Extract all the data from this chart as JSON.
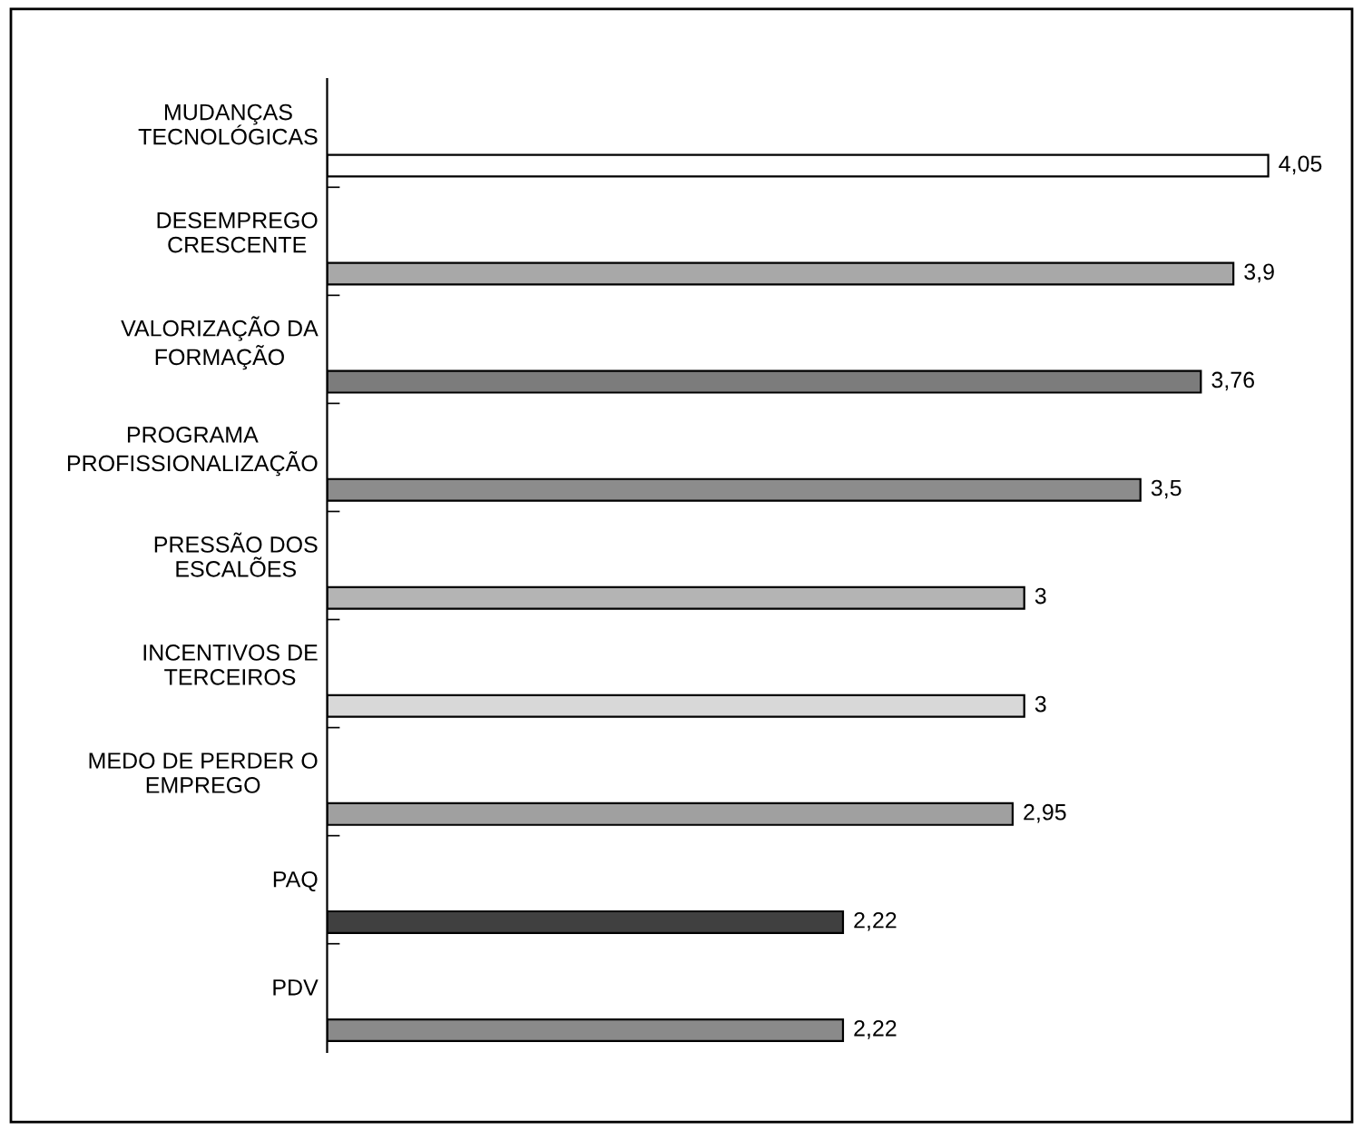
{
  "chart_data": {
    "type": "bar",
    "orientation": "horizontal",
    "categories": [
      "MUDANÇAS\nTECNOLÓGICAS",
      "DESEMPREGO\nCRESCENTE",
      "VALORIZAÇÃO DA\nFORMAÇÃO",
      "PROGRAMA\nPROFISSIONALIZAÇÃO",
      "PRESSÃO DOS\nESCALÕES",
      "INCENTIVOS DE\nTERCEIROS",
      "MEDO DE PERDER O\nEMPREGO",
      "PAQ",
      "PDV"
    ],
    "values": [
      4.05,
      3.9,
      3.76,
      3.5,
      3,
      3,
      2.95,
      2.22,
      2.22
    ],
    "value_labels": [
      "4,05",
      "3,9",
      "3,76",
      "3,5",
      "3",
      "3",
      "2,95",
      "2,22",
      "2,22"
    ],
    "colors": [
      "#ffffff",
      "#a8a8a8",
      "#7c7c7c",
      "#8c8c8c",
      "#b4b4b4",
      "#d8d8d8",
      "#a0a0a0",
      "#404040",
      "#8a8a8a"
    ],
    "grid": false,
    "legend": false
  }
}
